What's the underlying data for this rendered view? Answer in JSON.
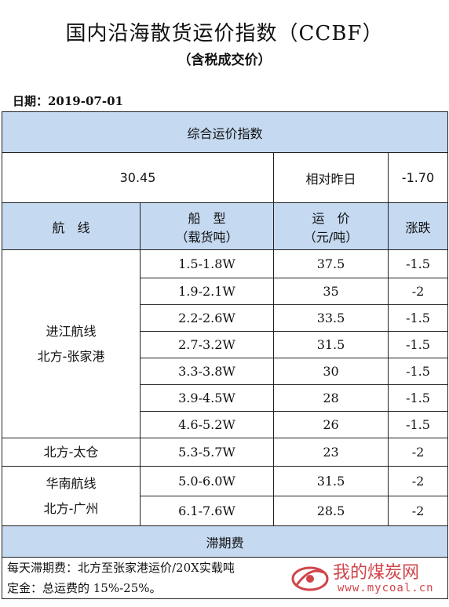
{
  "title": "国内沿海散货运价指数（CCBF）",
  "subtitle": "（含税成交价）",
  "date_line": "日期：2019-07-01",
  "composite": {
    "header": "综合运价指数",
    "value": "30.45",
    "compare_label": "相对昨日",
    "change": "-1.70"
  },
  "columns": {
    "route": "航　线",
    "ship_type": "船　型",
    "ship_type_unit": "（载货吨）",
    "freight": "运　价",
    "freight_unit": "（元/吨）",
    "change": "涨跌"
  },
  "groups": [
    {
      "route_line1": "进江航线",
      "route_line2": "北方-张家港",
      "rows": [
        {
          "ship": "1.5-1.8W",
          "price": "37.5",
          "change": "-1.5"
        },
        {
          "ship": "1.9-2.1W",
          "price": "35",
          "change": "-2"
        },
        {
          "ship": "2.2-2.6W",
          "price": "33.5",
          "change": "-1.5"
        },
        {
          "ship": "2.7-3.2W",
          "price": "31.5",
          "change": "-1.5"
        },
        {
          "ship": "3.3-3.8W",
          "price": "30",
          "change": "-1.5"
        },
        {
          "ship": "3.9-4.5W",
          "price": "28",
          "change": "-1.5"
        },
        {
          "ship": "4.6-5.2W",
          "price": "26",
          "change": "-1.5"
        }
      ]
    },
    {
      "route_line1": "北方-太仓",
      "route_line2": "",
      "rows": [
        {
          "ship": "5.3-5.7W",
          "price": "23",
          "change": "-2"
        }
      ]
    },
    {
      "route_line1": "华南航线",
      "route_line2": "北方-广州",
      "rows": [
        {
          "ship": "5.0-6.0W",
          "price": "31.5",
          "change": "-2"
        },
        {
          "ship": "6.1-7.6W",
          "price": "28.5",
          "change": "-2"
        }
      ]
    }
  ],
  "demurrage": {
    "header": "滞期费",
    "line1": "每天滞期费：北方至张家港运价/20X实载吨",
    "line2": "定金：总运费的 15%-25%。"
  },
  "watermark": {
    "text": "我的煤炭网",
    "url": "www.mycoal.cn",
    "color": "#c8242b"
  }
}
